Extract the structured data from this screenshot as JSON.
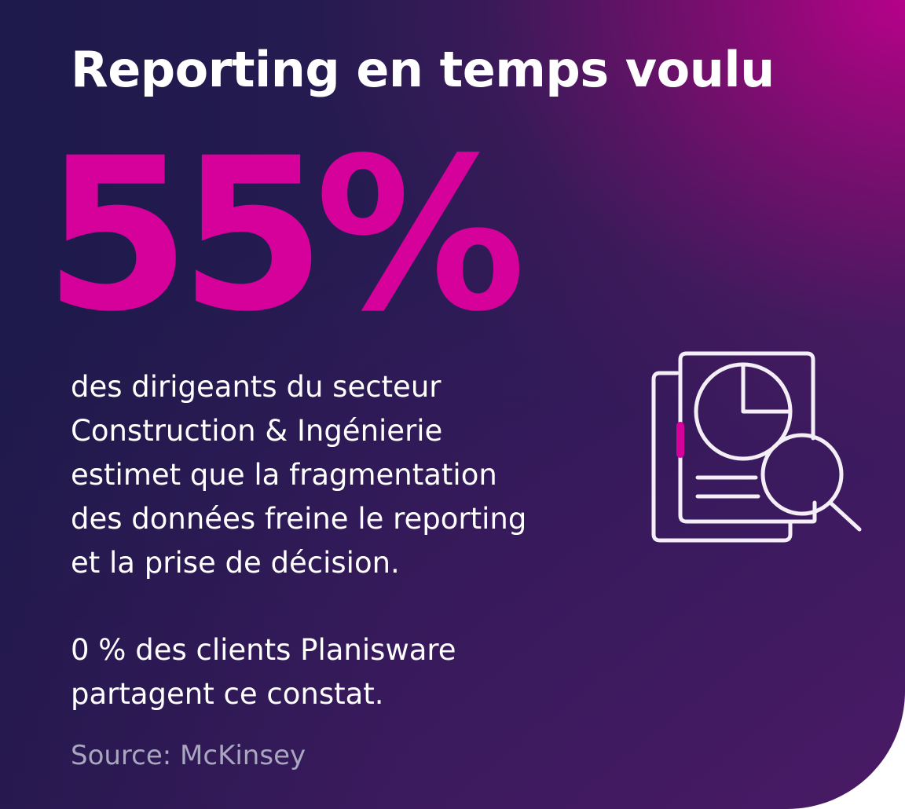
{
  "title": "Reporting en temps voulu",
  "stat": {
    "value": "55%"
  },
  "description": {
    "lines": [
      "des dirigeants du secteur",
      "Construction & Ingénierie",
      "estimet que la fragmentation",
      "des données freine le reporting",
      "et la prise de décision."
    ]
  },
  "note": {
    "lines": [
      "0 % des clients Planisware",
      "partagent ce constat."
    ]
  },
  "source": "Source: McKinsey",
  "icon": "report-magnifier-icon",
  "colors": {
    "accent": "#d6009a",
    "text": "#ffffff",
    "muted": "#a9a6bf",
    "background_dark": "#1c1f4a",
    "background_magenta": "#b0007f"
  }
}
